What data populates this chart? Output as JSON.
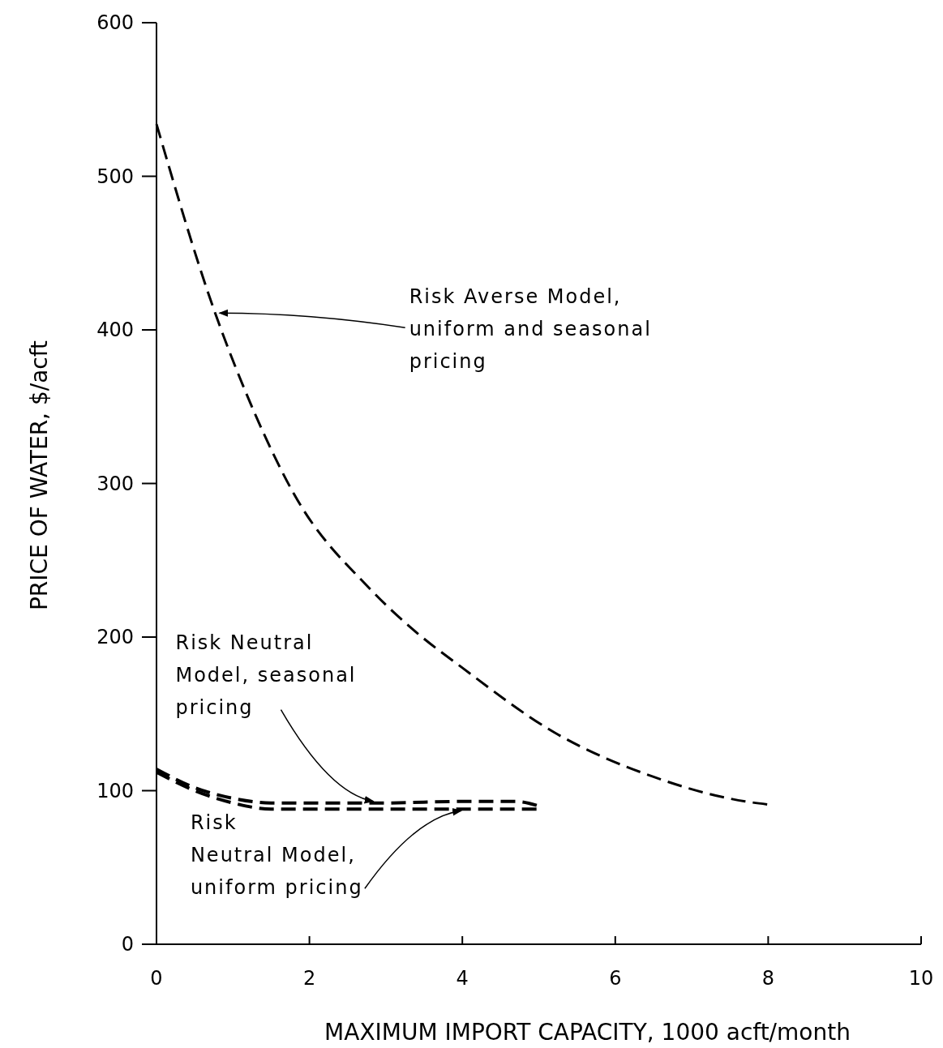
{
  "chart_data": {
    "type": "line",
    "xlabel": "MAXIMUM IMPORT CAPACITY, 1000 acft/month",
    "ylabel": "PRICE OF WATER, $/acft",
    "xlim": [
      0,
      10
    ],
    "ylim": [
      0,
      600
    ],
    "xticks": [
      0,
      2,
      4,
      6,
      8,
      10
    ],
    "yticks": [
      0,
      100,
      200,
      300,
      400,
      500,
      600
    ],
    "grid": false,
    "marker": "none",
    "line_style": "dashed",
    "series": [
      {
        "color": "#000000",
        "x": [
          0,
          0.76,
          1.3,
          1.8,
          2.8,
          3.4,
          4,
          5.2,
          6.5,
          7.7,
          8
        ],
        "values": [
          534,
          412,
          344,
          293,
          231,
          203,
          180,
          138,
          109,
          93,
          91
        ]
      },
      {
        "color": "#000000",
        "x": [
          0,
          0.5,
          1,
          1.5,
          2,
          3,
          4,
          4.7,
          5
        ],
        "values": [
          114,
          102,
          95,
          92,
          92,
          92,
          93,
          93,
          90
        ]
      },
      {
        "color": "#000000",
        "x": [
          0,
          0.5,
          1,
          1.5,
          2,
          3,
          4,
          5
        ],
        "values": [
          112,
          100,
          92,
          88,
          88,
          88,
          88,
          88
        ]
      }
    ],
    "annotations": [
      {
        "text": "Risk Averse Model,\nuniform and seasonal\npricing",
        "x": 0.76,
        "y": 412
      },
      {
        "text": "Risk Neutral\nModel, seasonal\npricing",
        "x": 2.9,
        "y": 92
      },
      {
        "text": "Risk\nNeutral Model,\nuniform pricing",
        "x": 4.05,
        "y": 88
      }
    ]
  }
}
